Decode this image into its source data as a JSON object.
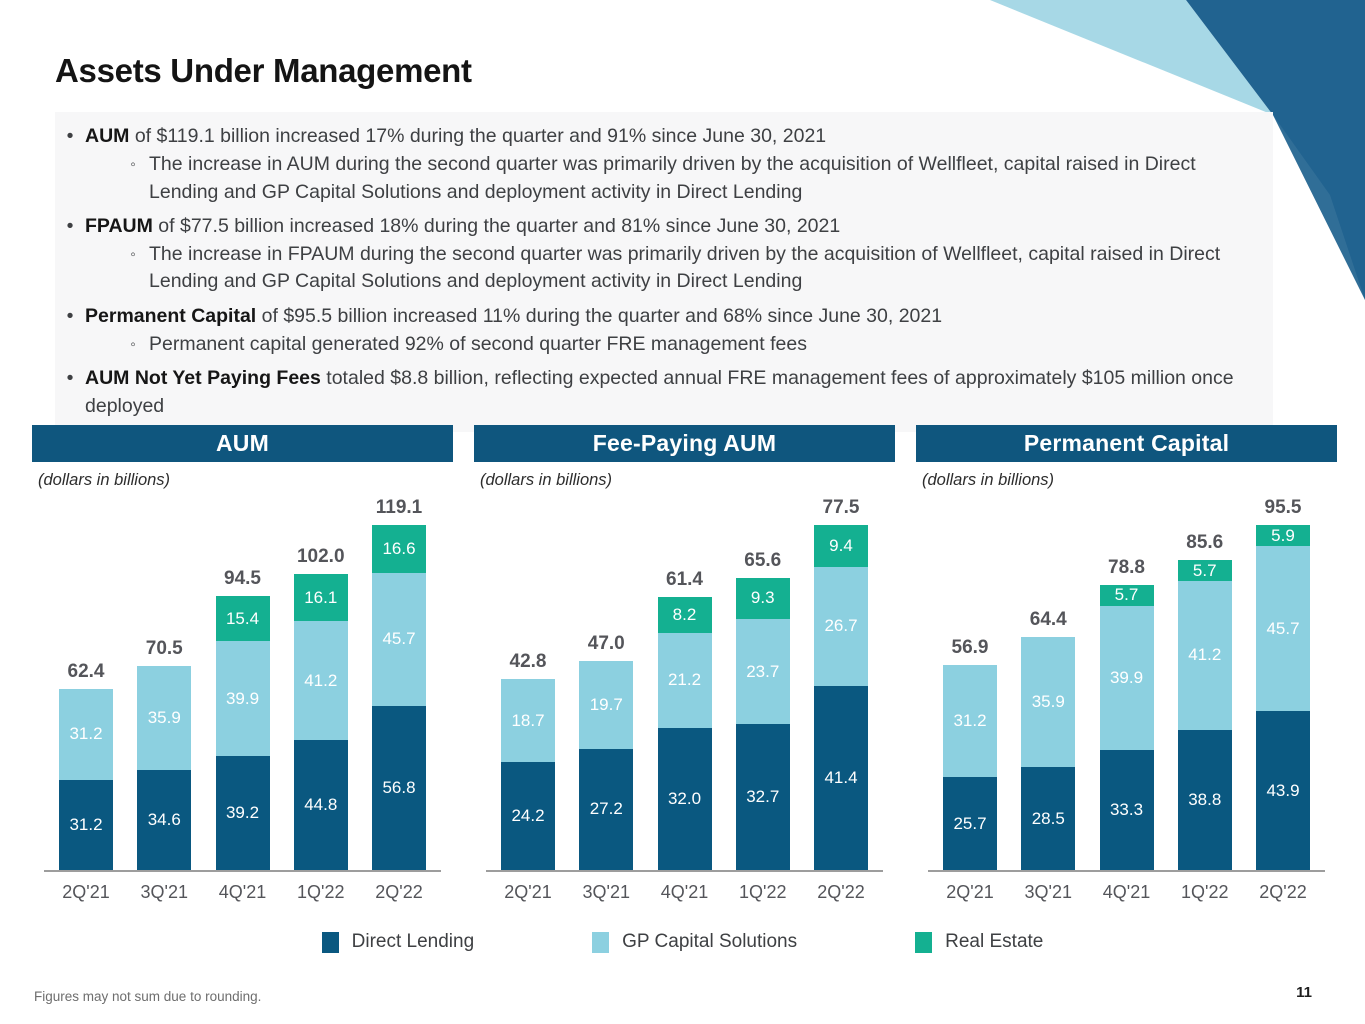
{
  "page": {
    "title": "Assets Under Management",
    "footnote": "Figures may not sum due to rounding.",
    "page_number": "11"
  },
  "colors": {
    "direct_lending": "#0A5880",
    "gp_capital_solutions": "#8CD0E0",
    "real_estate": "#14B091",
    "header_bar": "#0F567E",
    "label_gray": "#54555A",
    "corner_dark": "#216390",
    "corner_light": "#A7D8E6"
  },
  "bullets": [
    {
      "lead": "AUM",
      "text": " of $119.1 billion increased 17% during the quarter and 91% since June 30, 2021",
      "subs": [
        "The increase in AUM during the second quarter was primarily driven by the acquisition of Wellfleet, capital raised in Direct Lending and GP Capital Solutions and deployment activity in Direct Lending"
      ]
    },
    {
      "lead": "FPAUM",
      "text": " of $77.5 billion increased 18% during the quarter and 81% since June 30, 2021",
      "subs": [
        "The increase in FPAUM during the second quarter was primarily driven by the acquisition of Wellfleet, capital raised in Direct Lending and GP Capital Solutions and deployment activity in Direct Lending"
      ]
    },
    {
      "lead": "Permanent Capital",
      "text": " of $95.5 billion increased 11% during the quarter and 68% since June 30, 2021",
      "subs": [
        "Permanent capital generated 92% of second quarter FRE management fees"
      ]
    },
    {
      "lead": "AUM Not Yet Paying Fees",
      "text": " totaled $8.8 billion, reflecting expected annual FRE management fees of approximately $105 million once deployed",
      "subs": []
    }
  ],
  "legend": [
    {
      "label": "Direct Lending",
      "color_key": "direct_lending"
    },
    {
      "label": "GP Capital Solutions",
      "color_key": "gp_capital_solutions"
    },
    {
      "label": "Real Estate",
      "color_key": "real_estate"
    }
  ],
  "chart_data": [
    {
      "type": "bar",
      "stacked": true,
      "title": "AUM",
      "units_note": "(dollars in billions)",
      "categories": [
        "2Q'21",
        "3Q'21",
        "4Q'21",
        "1Q'22",
        "2Q'22"
      ],
      "series": [
        {
          "name": "Direct Lending",
          "color_key": "direct_lending",
          "values": [
            31.2,
            34.6,
            39.2,
            44.8,
            56.8
          ]
        },
        {
          "name": "GP Capital Solutions",
          "color_key": "gp_capital_solutions",
          "values": [
            31.2,
            35.9,
            39.9,
            41.2,
            45.7
          ]
        },
        {
          "name": "Real Estate",
          "color_key": "real_estate",
          "values": [
            null,
            null,
            15.4,
            16.1,
            16.6
          ]
        }
      ],
      "totals": [
        62.4,
        70.5,
        94.5,
        102.0,
        119.1
      ],
      "ylim": [
        0,
        130
      ],
      "grid": false,
      "legend_position": "shared-bottom"
    },
    {
      "type": "bar",
      "stacked": true,
      "title": "Fee-Paying AUM",
      "units_note": "(dollars in billions)",
      "categories": [
        "2Q'21",
        "3Q'21",
        "4Q'21",
        "1Q'22",
        "2Q'22"
      ],
      "series": [
        {
          "name": "Direct Lending",
          "color_key": "direct_lending",
          "values": [
            24.2,
            27.2,
            32.0,
            32.7,
            41.4
          ]
        },
        {
          "name": "GP Capital Solutions",
          "color_key": "gp_capital_solutions",
          "values": [
            18.7,
            19.7,
            21.2,
            23.7,
            26.7
          ]
        },
        {
          "name": "Real Estate",
          "color_key": "real_estate",
          "values": [
            null,
            null,
            8.2,
            9.3,
            9.4
          ]
        }
      ],
      "totals": [
        42.8,
        47.0,
        61.4,
        65.6,
        77.5
      ],
      "ylim": [
        0,
        85
      ],
      "grid": false,
      "legend_position": "shared-bottom"
    },
    {
      "type": "bar",
      "stacked": true,
      "title": "Permanent Capital",
      "units_note": "(dollars in billions)",
      "categories": [
        "2Q'21",
        "3Q'21",
        "4Q'21",
        "1Q'22",
        "2Q'22"
      ],
      "series": [
        {
          "name": "Direct Lending",
          "color_key": "direct_lending",
          "values": [
            25.7,
            28.5,
            33.3,
            38.8,
            43.9
          ]
        },
        {
          "name": "GP Capital Solutions",
          "color_key": "gp_capital_solutions",
          "values": [
            31.2,
            35.9,
            39.9,
            41.2,
            45.7
          ]
        },
        {
          "name": "Real Estate",
          "color_key": "real_estate",
          "values": [
            null,
            null,
            5.7,
            5.7,
            5.9
          ]
        }
      ],
      "totals": [
        56.9,
        64.4,
        78.8,
        85.6,
        95.5
      ],
      "ylim": [
        0,
        105
      ],
      "grid": false,
      "legend_position": "shared-bottom"
    }
  ]
}
